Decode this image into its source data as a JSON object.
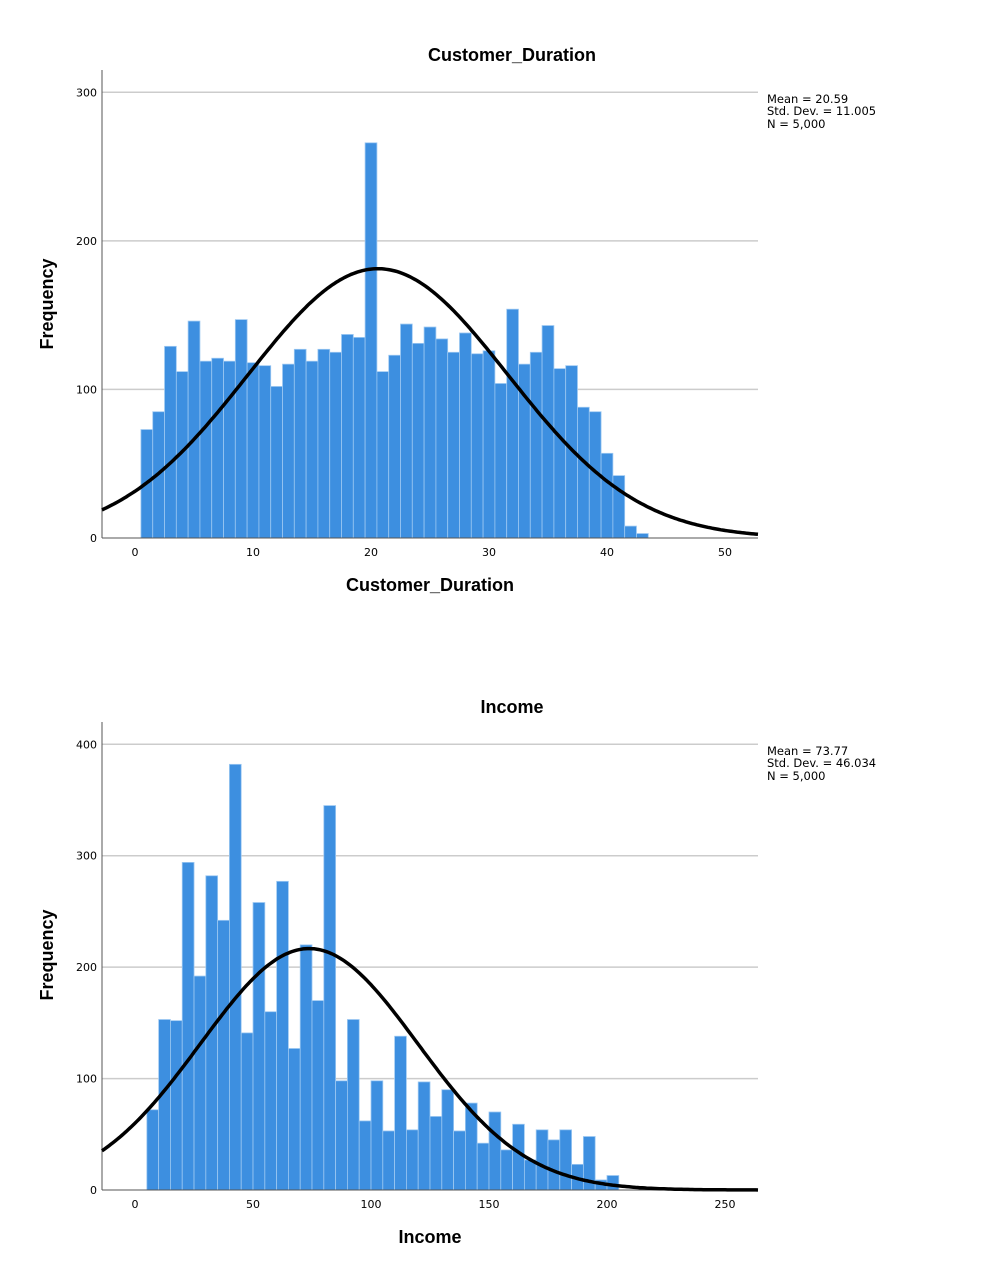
{
  "colors": {
    "bar": "#3d8fe0",
    "bar_edge": "#9cc8f2",
    "curve": "#000000",
    "grid": "#cccccc"
  },
  "chart_data": [
    {
      "type": "bar",
      "subtype": "histogram-with-normal-curve",
      "title": "Customer_Duration",
      "xlabel": "Customer_Duration",
      "ylabel": "Frequency",
      "xlim": [
        -2.8,
        52.8
      ],
      "ylim": [
        0,
        315
      ],
      "xticks": [
        0,
        10,
        20,
        30,
        40,
        50
      ],
      "yticks": [
        0,
        100,
        200,
        300
      ],
      "grid": "horizontal",
      "bin_width": 1,
      "bin_starts": [
        0.5,
        1.5,
        2.5,
        3.5,
        4.5,
        5.5,
        6.5,
        7.5,
        8.5,
        9.5,
        10.5,
        11.5,
        12.5,
        13.5,
        14.5,
        15.5,
        16.5,
        17.5,
        18.5,
        19.5,
        20.5,
        21.5,
        22.5,
        23.5,
        24.5,
        25.5,
        26.5,
        27.5,
        28.5,
        29.5,
        30.5,
        31.5,
        32.5,
        33.5,
        34.5,
        35.5,
        36.5,
        37.5,
        38.5,
        39.5,
        40.5,
        41.5,
        42.5
      ],
      "values": [
        73,
        85,
        129,
        112,
        146,
        119,
        121,
        119,
        147,
        118,
        116,
        102,
        117,
        127,
        119,
        127,
        125,
        137,
        135,
        266,
        112,
        123,
        144,
        131,
        142,
        134,
        125,
        138,
        124,
        126,
        104,
        154,
        117,
        125,
        143,
        114,
        116,
        88,
        85,
        57,
        42,
        8,
        3
      ],
      "stats": {
        "mean": 20.59,
        "std_dev": 11.005,
        "n": 5000,
        "lines": [
          "Mean = 20.59",
          "Std. Dev. = 11.005",
          "N = 5,000"
        ]
      },
      "legend_placement": "top-right"
    },
    {
      "type": "bar",
      "subtype": "histogram-with-normal-curve",
      "title": "Income",
      "xlabel": "Income",
      "ylabel": "Frequency",
      "xlim": [
        -14,
        264
      ],
      "ylim": [
        0,
        420
      ],
      "xticks": [
        0,
        50,
        100,
        150,
        200,
        250
      ],
      "yticks": [
        0,
        100,
        200,
        300,
        400
      ],
      "grid": "horizontal",
      "bin_width": 5,
      "bin_starts": [
        5,
        10,
        15,
        20,
        25,
        30,
        35,
        40,
        45,
        50,
        55,
        60,
        65,
        70,
        75,
        80,
        85,
        90,
        95,
        100,
        105,
        110,
        115,
        120,
        125,
        130,
        135,
        140,
        145,
        150,
        155,
        160,
        165,
        170,
        175,
        180,
        185,
        190,
        195,
        200
      ],
      "values": [
        72,
        153,
        152,
        294,
        192,
        282,
        242,
        382,
        141,
        258,
        160,
        277,
        127,
        220,
        170,
        345,
        98,
        153,
        62,
        98,
        53,
        138,
        54,
        97,
        66,
        90,
        53,
        78,
        42,
        70,
        36,
        59,
        27,
        54,
        45,
        54,
        23,
        48,
        9,
        13
      ],
      "stats": {
        "mean": 73.77,
        "std_dev": 46.034,
        "n": 5000,
        "lines": [
          "Mean = 73.77",
          "Std. Dev. = 46.034",
          "N = 5,000"
        ]
      },
      "legend_placement": "top-right"
    }
  ]
}
